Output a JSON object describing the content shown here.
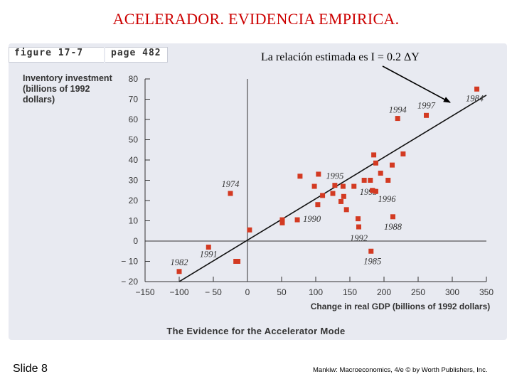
{
  "slide": {
    "title": "ACELERADOR. EVIDENCIA EMPIRICA.",
    "figure_label": "figure 17-7",
    "page_label": "page 482",
    "number": "Slide 8",
    "credit": "Mankiw: Macroeconomics, 4/e © by Worth Publishers, Inc."
  },
  "colors": {
    "title": "#cc0000",
    "panel": "#e8eaf1",
    "marker": "#d33a22",
    "axis": "#333333"
  },
  "chart_data": {
    "type": "scatter",
    "title": "The Evidence for the Accelerator Mode",
    "xlabel": "Change in real GDP (billions of 1992 dollars)",
    "ylabel": "Inventory investment (billions of 1992 dollars)",
    "xlim": [
      -150,
      350
    ],
    "ylim": [
      -20,
      80
    ],
    "xticks": [
      -150,
      -100,
      -50,
      0,
      50,
      100,
      150,
      200,
      250,
      300,
      350
    ],
    "xtick_labels": [
      "−150",
      "−100",
      "− 50",
      "0",
      "50",
      "100",
      "150",
      "200",
      "250",
      "300",
      "350"
    ],
    "yticks": [
      -20,
      -10,
      0,
      10,
      20,
      30,
      40,
      50,
      60,
      70,
      80
    ],
    "ytick_labels": [
      "− 20",
      "− 10",
      "0",
      "10",
      "20",
      "30",
      "40",
      "50",
      "60",
      "70",
      "80"
    ],
    "grid": false,
    "fit_line": {
      "x": [
        -100,
        350
      ],
      "y": [
        -20,
        72
      ],
      "annotation": "La relación estimada es I = 0.2 ΔY"
    },
    "points": [
      {
        "x": -100,
        "y": -15,
        "label": "1982"
      },
      {
        "x": -57,
        "y": -3,
        "label": "1991"
      },
      {
        "x": -17,
        "y": -10,
        "label": ""
      },
      {
        "x": -14,
        "y": -10,
        "label": ""
      },
      {
        "x": -25,
        "y": 23.5,
        "label": "1974"
      },
      {
        "x": 3,
        "y": 5.5,
        "label": ""
      },
      {
        "x": 51,
        "y": 9,
        "label": ""
      },
      {
        "x": 51,
        "y": 10.5,
        "label": ""
      },
      {
        "x": 73,
        "y": 10.5,
        "label": "1990"
      },
      {
        "x": 77,
        "y": 32,
        "label": ""
      },
      {
        "x": 98,
        "y": 27,
        "label": ""
      },
      {
        "x": 103,
        "y": 18,
        "label": ""
      },
      {
        "x": 104,
        "y": 33,
        "label": ""
      },
      {
        "x": 110,
        "y": 22.5,
        "label": ""
      },
      {
        "x": 125,
        "y": 23.5,
        "label": ""
      },
      {
        "x": 128,
        "y": 27.5,
        "label": "1995"
      },
      {
        "x": 137,
        "y": 19.5,
        "label": ""
      },
      {
        "x": 140,
        "y": 27,
        "label": ""
      },
      {
        "x": 141,
        "y": 22,
        "label": ""
      },
      {
        "x": 145,
        "y": 15.5,
        "label": ""
      },
      {
        "x": 156,
        "y": 27,
        "label": "1993"
      },
      {
        "x": 162,
        "y": 11,
        "label": ""
      },
      {
        "x": 163,
        "y": 7,
        "label": "1992"
      },
      {
        "x": 171,
        "y": 30,
        "label": ""
      },
      {
        "x": 180,
        "y": 30,
        "label": ""
      },
      {
        "x": 183,
        "y": 25,
        "label": ""
      },
      {
        "x": 185,
        "y": 42.5,
        "label": ""
      },
      {
        "x": 188,
        "y": 38.5,
        "label": ""
      },
      {
        "x": 188,
        "y": 24.5,
        "label": "1996"
      },
      {
        "x": 195,
        "y": 33.5,
        "label": ""
      },
      {
        "x": 206,
        "y": 30,
        "label": ""
      },
      {
        "x": 212,
        "y": 37.5,
        "label": ""
      },
      {
        "x": 213,
        "y": 12,
        "label": "1988"
      },
      {
        "x": 181,
        "y": -5,
        "label": "1985"
      },
      {
        "x": 220,
        "y": 60.5,
        "label": "1994"
      },
      {
        "x": 228,
        "y": 43,
        "label": ""
      },
      {
        "x": 262,
        "y": 62,
        "label": "1997"
      },
      {
        "x": 336,
        "y": 75,
        "label": "1984"
      }
    ]
  }
}
